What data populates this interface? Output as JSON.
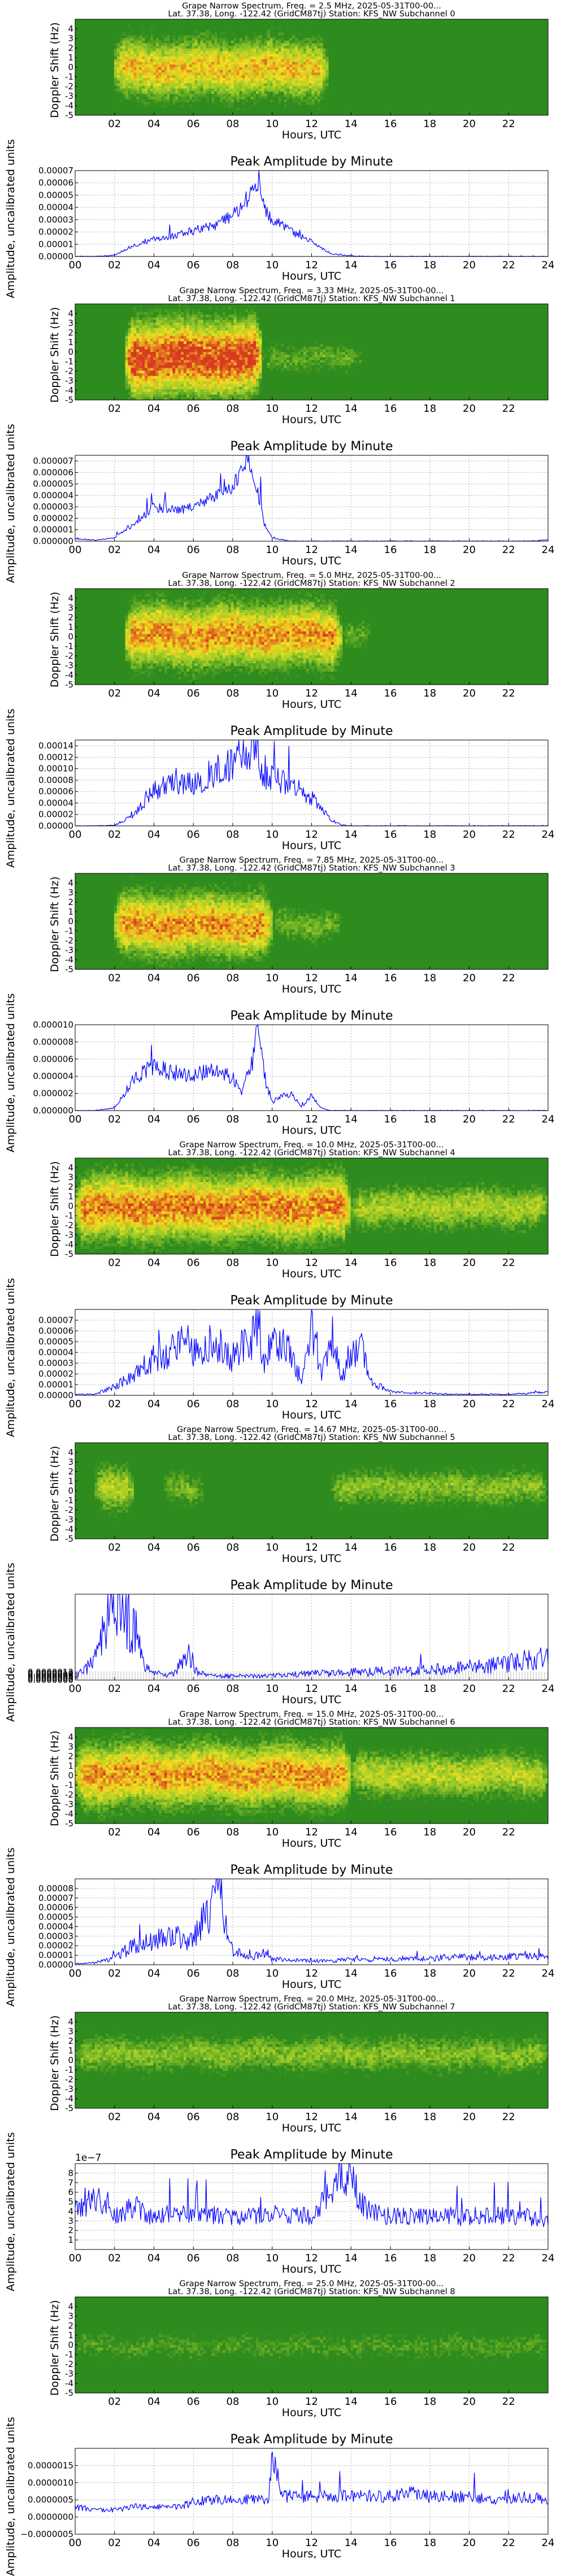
{
  "figure": {
    "spec_title_prefix": "Grape Narrow Spectrum, Freq. = ",
    "spec_title_suffix": " MHz, 2025-05-31T00-00...",
    "spec_subtitle_prefix": "Lat.  37.38, Long. -122.42 (GridCM87tj) Station: KFS_NW Subchannel ",
    "amp_title": "Peak Amplitude by Minute",
    "xlabel": "Hours, UTC",
    "spec_ylabel": "Doppler Shift (Hz)",
    "amp_ylabel": "Amplitude, uncalibrated units",
    "spec_xticks": [
      "02",
      "04",
      "06",
      "08",
      "10",
      "12",
      "14",
      "16",
      "18",
      "20",
      "22"
    ],
    "amp_xticks": [
      "00",
      "02",
      "04",
      "06",
      "08",
      "10",
      "12",
      "14",
      "16",
      "18",
      "20",
      "22",
      "24"
    ],
    "spec_yticks": [
      "-5",
      "-4",
      "-3",
      "-2",
      "-1",
      "0",
      "1",
      "2",
      "3",
      "4"
    ],
    "colors": {
      "background": "#2e8b1e",
      "trace": "#d83a20",
      "trace_halo": "#f2e020",
      "line": "#0000ff",
      "grid": "#b0b0b0"
    }
  },
  "chart_data": [
    {
      "type": "heatmap",
      "freq": "2.5",
      "subchannel": "0",
      "xlim": [
        0,
        24
      ],
      "ylim": [
        -5,
        5
      ],
      "grid": false,
      "activity": [
        [
          2.0,
          12.8,
          0.7
        ]
      ],
      "trace_offset": 0.0
    },
    {
      "type": "line",
      "exp_label": "",
      "ylim": [
        0,
        7e-05
      ],
      "yticks": [
        "0.00000",
        "0.00001",
        "0.00002",
        "0.00003",
        "0.00004",
        "0.00005",
        "0.00006",
        "0.00007"
      ],
      "x": [
        0,
        1,
        2,
        3,
        4,
        5,
        6,
        7,
        8,
        8.5,
        9,
        9.3,
        9.5,
        10,
        11,
        12,
        12.5,
        13,
        14,
        15,
        16,
        17,
        18,
        19,
        20,
        21,
        22,
        23,
        24
      ],
      "y": [
        0,
        0,
        1e-06,
        9e-06,
        1.4e-05,
        1.7e-05,
        2.1e-05,
        2.5e-05,
        3.4e-05,
        4e-05,
        5.2e-05,
        6e-05,
        4.2e-05,
        3e-05,
        2e-05,
        1.2e-05,
        7e-06,
        2e-06,
        5e-07,
        0,
        0,
        0,
        0,
        0,
        0,
        0,
        0,
        0,
        0
      ],
      "noise": 0.16,
      "grid": true
    },
    {
      "type": "heatmap",
      "freq": "3.33",
      "subchannel": "1",
      "xlim": [
        0,
        24
      ],
      "ylim": [
        -5,
        5
      ],
      "grid": false,
      "activity": [
        [
          2.5,
          9.5,
          1.0
        ],
        [
          9.5,
          14.5,
          0.25
        ]
      ],
      "trace_offset": -0.5
    },
    {
      "type": "line",
      "exp_label": "",
      "ylim": [
        0,
        7.5e-06
      ],
      "yticks": [
        "0.000000",
        "0.000001",
        "0.000002",
        "0.000003",
        "0.000004",
        "0.000005",
        "0.000006",
        "0.000007"
      ],
      "x": [
        0,
        1,
        2,
        3,
        4,
        5,
        6,
        7,
        8,
        8.7,
        9,
        9.3,
        9.6,
        10,
        10.5,
        11,
        12,
        13,
        14,
        15,
        16,
        17,
        18,
        19,
        20,
        21,
        22,
        23,
        24
      ],
      "y": [
        2e-07,
        1e-07,
        3e-07,
        1.5e-06,
        3e-06,
        2.7e-06,
        3e-06,
        3.8e-06,
        4.8e-06,
        7e-06,
        6.4e-06,
        4e-06,
        1.5e-06,
        3e-07,
        1e-07,
        0,
        0,
        0,
        0,
        0,
        0,
        0,
        0,
        0,
        0,
        0,
        0,
        0,
        1e-07
      ],
      "noise": 0.14,
      "grid": true
    },
    {
      "type": "heatmap",
      "freq": "5.0",
      "subchannel": "2",
      "xlim": [
        0,
        24
      ],
      "ylim": [
        -5,
        5
      ],
      "grid": false,
      "activity": [
        [
          2.5,
          13.5,
          0.8
        ],
        [
          13.5,
          15.0,
          0.25
        ]
      ],
      "trace_offset": 0.3
    },
    {
      "type": "line",
      "exp_label": "",
      "ylim": [
        0,
        0.00015
      ],
      "yticks": [
        "0.00000",
        "0.00002",
        "0.00004",
        "0.00006",
        "0.00008",
        "0.00010",
        "0.00012",
        "0.00014"
      ],
      "x": [
        0,
        1,
        2,
        3,
        4,
        5,
        6,
        7,
        8,
        9,
        9.5,
        10,
        11,
        12,
        12.5,
        13,
        13.5,
        14,
        15,
        16,
        17,
        18,
        19,
        20,
        21,
        22,
        23,
        24
      ],
      "y": [
        0,
        0,
        1e-06,
        2e-05,
        6e-05,
        8e-05,
        7e-05,
        9.5e-05,
        0.00011,
        0.00014,
        9e-05,
        8e-05,
        7.5e-05,
        5e-05,
        3e-05,
        1e-05,
        2e-06,
        0,
        0,
        0,
        0,
        0,
        0,
        0,
        0,
        0,
        0,
        0
      ],
      "noise": 0.3,
      "grid": true
    },
    {
      "type": "heatmap",
      "freq": "7.85",
      "subchannel": "3",
      "xlim": [
        0,
        24
      ],
      "ylim": [
        -5,
        5
      ],
      "grid": false,
      "activity": [
        [
          2.0,
          10.0,
          0.8
        ],
        [
          10.0,
          13.5,
          0.3
        ]
      ],
      "trace_offset": -0.2
    },
    {
      "type": "line",
      "exp_label": "",
      "ylim": [
        0,
        1e-05
      ],
      "yticks": [
        "0.000000",
        "0.000002",
        "0.000004",
        "0.000006",
        "0.000008",
        "0.000010"
      ],
      "x": [
        0,
        1,
        2,
        2.5,
        3,
        4,
        5,
        6,
        7,
        8,
        8.5,
        9,
        9.3,
        9.6,
        10,
        10.5,
        11,
        11.5,
        12,
        12.5,
        13,
        14,
        15,
        16,
        17,
        18,
        19,
        20,
        21,
        22,
        23,
        24
      ],
      "y": [
        0,
        0,
        3e-07,
        2e-06,
        4e-06,
        5e-06,
        4.5e-06,
        4e-06,
        4.8e-06,
        3.8e-06,
        2.2e-06,
        6e-06,
        9.8e-06,
        4e-06,
        1e-06,
        1.6e-06,
        2e-06,
        4e-07,
        1.8e-06,
        3e-07,
        0,
        0,
        0,
        0,
        0,
        0,
        0,
        0,
        0,
        0,
        0,
        0
      ],
      "noise": 0.22,
      "grid": true
    },
    {
      "type": "heatmap",
      "freq": "10.0",
      "subchannel": "4",
      "xlim": [
        0,
        24
      ],
      "ylim": [
        -5,
        5
      ],
      "grid": false,
      "activity": [
        [
          0.0,
          14.0,
          0.85
        ],
        [
          14.0,
          24.0,
          0.45
        ]
      ],
      "trace_offset": 0.0
    },
    {
      "type": "line",
      "exp_label": "",
      "ylim": [
        0,
        8e-05
      ],
      "yticks": [
        "0.00000",
        "0.00001",
        "0.00002",
        "0.00003",
        "0.00004",
        "0.00005",
        "0.00006",
        "0.00007"
      ],
      "x": [
        0,
        1,
        2,
        3,
        4,
        5,
        5.5,
        6,
        7,
        8,
        9,
        9.3,
        9.6,
        10,
        11,
        11.5,
        12,
        12.5,
        13,
        13.5,
        14,
        14.5,
        15,
        16,
        17,
        18,
        19,
        20,
        21,
        22,
        23,
        24
      ],
      "y": [
        1e-06,
        1e-06,
        8e-06,
        2e-05,
        3.5e-05,
        4.5e-05,
        6e-05,
        4e-05,
        5e-05,
        3.5e-05,
        5.5e-05,
        6.8e-05,
        3e-05,
        5e-05,
        4e-05,
        1e-05,
        6e-05,
        2e-05,
        5.8e-05,
        1.5e-05,
        3.5e-05,
        4.5e-05,
        1.2e-05,
        4e-06,
        2e-06,
        2e-06,
        1e-06,
        1e-06,
        1e-06,
        1e-06,
        2e-06,
        4e-06
      ],
      "noise": 0.4,
      "grid": true
    },
    {
      "type": "heatmap",
      "freq": "14.67",
      "subchannel": "5",
      "xlim": [
        0,
        24
      ],
      "ylim": [
        -5,
        5
      ],
      "grid": false,
      "activity": [
        [
          1.0,
          3.0,
          0.5
        ],
        [
          4.5,
          6.5,
          0.3
        ],
        [
          13.0,
          24.0,
          0.35
        ]
      ],
      "trace_offset": 0.5
    },
    {
      "type": "line",
      "exp_label": "",
      "ylim": [
        0,
        1.3e-05
      ],
      "yticks": [
        "0.0000000",
        "0.0000002",
        "0.0000004",
        "0.0000006",
        "0.0000008",
        "0.0000010",
        "0.0000012"
      ],
      "x": [
        0,
        1,
        1.5,
        2,
        2.5,
        3,
        3.5,
        4,
        5,
        5.8,
        6,
        6.3,
        7,
        8,
        9,
        10,
        11,
        12,
        13,
        14,
        15,
        16,
        17,
        18,
        19,
        20,
        21,
        22,
        23,
        24
      ],
      "y": [
        5e-07,
        3e-06,
        8e-06,
        1.25e-05,
        1e-05,
        8e-06,
        2e-06,
        1e-06,
        8e-07,
        4e-06,
        2.5e-06,
        1e-06,
        6e-07,
        6e-07,
        6e-07,
        7e-07,
        8e-07,
        1e-06,
        1e-06,
        1.2e-06,
        1.3e-06,
        1.4e-06,
        1.5e-06,
        1.6e-06,
        1.8e-06,
        2e-06,
        2.2e-06,
        2.5e-06,
        3e-06,
        3.5e-06
      ],
      "noise": 0.55,
      "grid": true
    },
    {
      "type": "heatmap",
      "freq": "15.0",
      "subchannel": "6",
      "xlim": [
        0,
        24
      ],
      "ylim": [
        -5,
        5
      ],
      "grid": false,
      "activity": [
        [
          0.0,
          14.0,
          0.8
        ],
        [
          14.0,
          24.0,
          0.5
        ]
      ],
      "trace_offset": 0.2
    },
    {
      "type": "line",
      "exp_label": "",
      "ylim": [
        0,
        9e-05
      ],
      "yticks": [
        "0.00000",
        "0.00001",
        "0.00002",
        "0.00003",
        "0.00004",
        "0.00005",
        "0.00006",
        "0.00007",
        "0.00008"
      ],
      "x": [
        0,
        1,
        2,
        3,
        4,
        5,
        6,
        6.5,
        7,
        7.3,
        7.6,
        8,
        8.5,
        9,
        9.5,
        10,
        11,
        12,
        13,
        14,
        15,
        16,
        17,
        18,
        19,
        20,
        21,
        22,
        23,
        24
      ],
      "y": [
        1e-06,
        2e-06,
        8e-06,
        2e-05,
        2.5e-05,
        3e-05,
        2.5e-05,
        4.5e-05,
        6e-05,
        8.5e-05,
        4e-05,
        1.5e-05,
        1e-05,
        8e-06,
        1.2e-05,
        6e-06,
        5e-06,
        4e-06,
        4e-06,
        6e-06,
        5e-06,
        6e-06,
        7e-06,
        6e-06,
        8e-06,
        8e-06,
        7e-06,
        9e-06,
        1e-05,
        8e-06
      ],
      "noise": 0.45,
      "grid": true
    },
    {
      "type": "heatmap",
      "freq": "20.0",
      "subchannel": "7",
      "xlim": [
        0,
        24
      ],
      "ylim": [
        -5,
        5
      ],
      "grid": false,
      "activity": [
        [
          0.0,
          24.0,
          0.35
        ],
        [
          13.0,
          15.0,
          0.3
        ]
      ],
      "trace_offset": 0.8
    },
    {
      "type": "line",
      "exp_label": "1e−7",
      "ylim": [
        0,
        9
      ],
      "yticks": [
        "1",
        "2",
        "3",
        "4",
        "5",
        "6",
        "7",
        "8"
      ],
      "x": [
        0,
        1,
        2,
        3,
        4,
        5,
        6,
        7,
        8,
        9,
        10,
        11,
        12,
        13,
        13.5,
        14,
        14.5,
        15,
        16,
        17,
        18,
        19,
        20,
        21,
        22,
        23,
        24
      ],
      "y": [
        4.0,
        5.5,
        3.5,
        4.5,
        3.5,
        3.5,
        4.0,
        3.5,
        3.5,
        3.5,
        3.5,
        3.5,
        3.5,
        6.0,
        8.0,
        7.5,
        5.0,
        4.0,
        3.5,
        3.5,
        3.5,
        3.5,
        3.5,
        3.5,
        3.5,
        3.5,
        3.0
      ],
      "noise": 0.28,
      "grid": true
    },
    {
      "type": "heatmap",
      "freq": "25.0",
      "subchannel": "8",
      "xlim": [
        0,
        24
      ],
      "ylim": [
        -5,
        5
      ],
      "grid": false,
      "activity": [
        [
          0.0,
          24.0,
          0.2
        ]
      ],
      "trace_offset": 0.0
    },
    {
      "type": "line",
      "exp_label": "",
      "ylim": [
        -5e-07,
        2e-06
      ],
      "yticks": [
        "−0.0000005",
        "0.0000000",
        "0.0000005",
        "0.0000010",
        "0.0000015"
      ],
      "x": [
        0,
        1,
        2,
        3,
        4,
        5,
        6,
        7,
        8,
        9,
        9.8,
        10,
        10.5,
        11,
        12,
        13,
        14,
        15,
        16,
        17,
        18,
        19,
        20,
        21,
        22,
        23,
        24
      ],
      "y": [
        3e-07,
        2e-07,
        2e-07,
        3e-07,
        3e-07,
        3e-07,
        4e-07,
        5e-07,
        5e-07,
        5e-07,
        5e-07,
        1.8e-06,
        6e-07,
        6e-07,
        6e-07,
        6e-07,
        6e-07,
        6e-07,
        6e-07,
        7e-07,
        6e-07,
        6e-07,
        6e-07,
        5e-07,
        5e-07,
        6e-07,
        5e-07
      ],
      "noise": 0.3,
      "grid": true
    }
  ]
}
